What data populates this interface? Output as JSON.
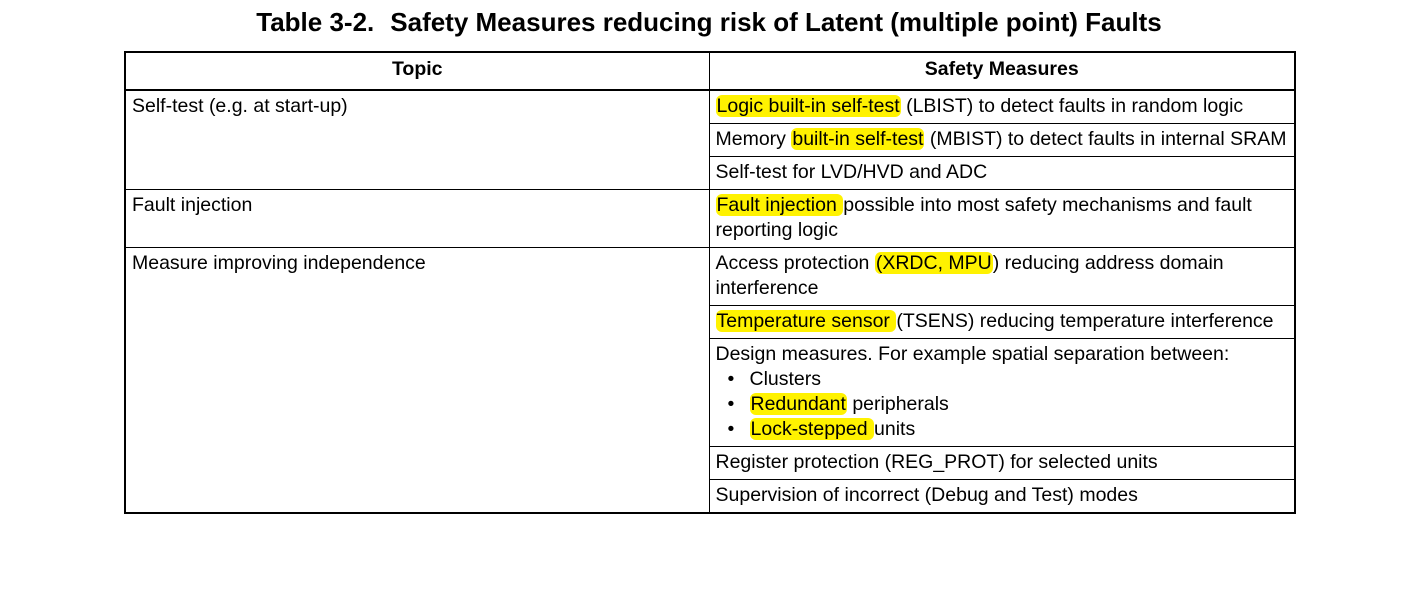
{
  "title": {
    "number": "Table 3-2.",
    "text": "Safety Measures reducing risk of Latent (multiple point) Faults"
  },
  "headers": {
    "topic": "Topic",
    "measures": "Safety Measures"
  },
  "groups": [
    {
      "topic": "Self-test (e.g. at start-up)",
      "measures": [
        {
          "segments": [
            {
              "text": "Logic built-in self-test",
              "hl": true
            },
            {
              "text": " (LBIST) to detect faults in random logic"
            }
          ]
        },
        {
          "segments": [
            {
              "text": "Memory "
            },
            {
              "text": "built-in self-test",
              "hl": true
            },
            {
              "text": " (MBIST) to detect faults in internal SRAM"
            }
          ]
        },
        {
          "segments": [
            {
              "text": "Self-test for LVD/HVD and ADC"
            }
          ]
        }
      ]
    },
    {
      "topic": "Fault injection",
      "measures": [
        {
          "segments": [
            {
              "text": "Fault injection ",
              "hl": true
            },
            {
              "text": "possible into most safety mechanisms and fault reporting logic"
            }
          ]
        }
      ]
    },
    {
      "topic": "Measure improving independence",
      "measures": [
        {
          "segments": [
            {
              "text": "Access protection "
            },
            {
              "text": "(XRDC, MPU",
              "hl": true
            },
            {
              "text": ") reducing address domain interference"
            }
          ]
        },
        {
          "segments": [
            {
              "text": "Temperature sensor ",
              "hl": true
            },
            {
              "text": "(TSENS) reducing temperature interference"
            }
          ]
        },
        {
          "segments": [
            {
              "text": "Design measures. For example spatial separation between:"
            }
          ],
          "bullets": [
            [
              {
                "text": "Clusters"
              }
            ],
            [
              {
                "text": "Redundant",
                "hl": true
              },
              {
                "text": " peripherals"
              }
            ],
            [
              {
                "text": "Lock-stepped ",
                "hl": true
              },
              {
                "text": "units"
              }
            ]
          ]
        },
        {
          "segments": [
            {
              "text": "Register protection (REG_PROT) for selected units"
            }
          ]
        },
        {
          "segments": [
            {
              "text": "Supervision of incorrect (Debug and Test) modes"
            }
          ]
        }
      ]
    }
  ]
}
